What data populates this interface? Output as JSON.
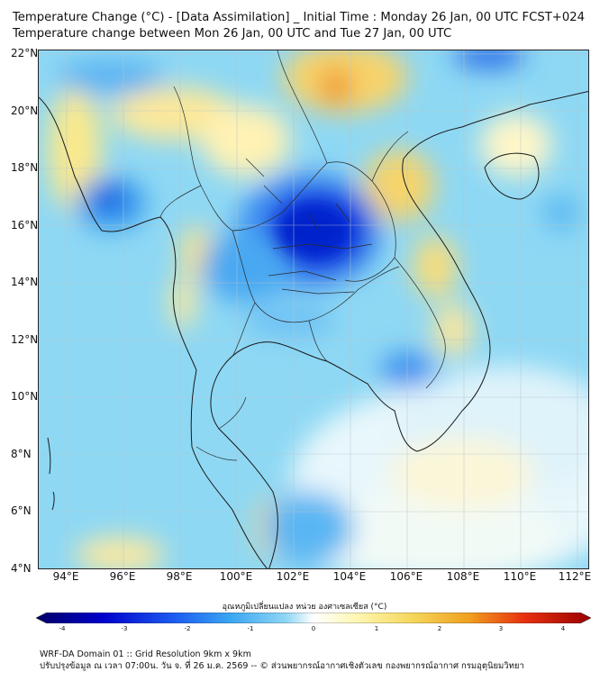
{
  "header": {
    "title_line1": "Temperature Change (°C) - [Data Assimilation] _ Initial Time : Monday 26 Jan, 00 UTC FCST+024",
    "title_line2": "Temperature change between Mon 26 Jan, 00 UTC and Tue 27 Jan, 00 UTC"
  },
  "map": {
    "lat_labels": [
      "22°N",
      "20°N",
      "18°N",
      "16°N",
      "14°N",
      "12°N",
      "10°N",
      "8°N",
      "6°N",
      "4°N"
    ],
    "lon_labels": [
      "94°E",
      "96°E",
      "98°E",
      "100°E",
      "102°E",
      "104°E",
      "106°E",
      "108°E",
      "110°E",
      "112°E"
    ],
    "lat_range": [
      4,
      22.2
    ],
    "lon_range": [
      93,
      112.4
    ]
  },
  "colorbar": {
    "label": "อุณหภูมิเปลี่ยนแปลง หน่วย องศาเซลเซียส (°C)",
    "ticks": [
      "-4",
      "-3",
      "-2",
      "-1",
      "0",
      "1",
      "2",
      "3",
      "4"
    ],
    "colors": [
      "#000066",
      "#0000cc",
      "#1d5cf2",
      "#3aa6f2",
      "#8fd6f5",
      "#ffffff",
      "#fff6b0",
      "#f5d65a",
      "#f0a020",
      "#e83010",
      "#990000"
    ]
  },
  "footer": {
    "line1": "WRF-DA Domain 01 :: Grid Resolution 9km x 9km",
    "line2": "ปรับปรุงข้อมูล ณ เวลา 07:00น. วัน จ. ที่ 26 ม.ค. 2569 -- © ส่วนพยากรณ์อากาศเชิงตัวเลข กองพยากรณ์อากาศ กรมอุตุนิยมวิทยา"
  }
}
